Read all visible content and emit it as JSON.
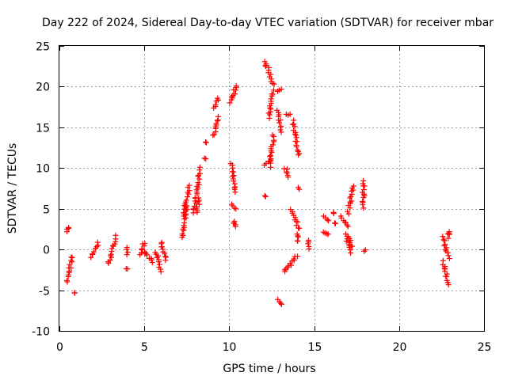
{
  "chart_data": {
    "type": "scatter",
    "title": "Day 222 of 2024, Sidereal Day-to-day VTEC variation (SDTVAR) for receiver mbar",
    "xlabel": "GPS time / hours",
    "ylabel": "SDTVAR / TECUs",
    "xlim": [
      0,
      25
    ],
    "ylim": [
      -10,
      25
    ],
    "xticks": [
      0,
      5,
      10,
      15,
      20,
      25
    ],
    "yticks": [
      -10,
      -5,
      0,
      5,
      10,
      15,
      20,
      25
    ],
    "xtick_labels": [
      "0",
      "5",
      "10",
      "15",
      "20",
      "25"
    ],
    "ytick_labels": [
      "-10",
      "-5",
      "0",
      "5",
      "10",
      "15",
      "20",
      "25"
    ],
    "grid": true,
    "marker": "+",
    "color": "#ff0000",
    "series": [
      {
        "name": "SDTVAR",
        "segments": [
          {
            "x0": 0.45,
            "x1": 0.6,
            "y0": 2.2,
            "y1": 2.8
          },
          {
            "x0": 0.45,
            "x1": 0.75,
            "y0": -4.0,
            "y1": -0.8
          },
          {
            "x0": 0.9,
            "x1": 0.9,
            "y0": -5.4,
            "y1": -5.4
          },
          {
            "x0": 1.9,
            "x1": 2.3,
            "y0": -0.9,
            "y1": 0.8
          },
          {
            "x0": 2.9,
            "x1": 3.3,
            "y0": -1.8,
            "y1": 1.6
          },
          {
            "x0": 4.0,
            "x1": 4.0,
            "y0": 0.2,
            "y1": -0.5
          },
          {
            "x0": 4.0,
            "x1": 4.0,
            "y0": -2.4,
            "y1": -2.4
          },
          {
            "x0": 4.8,
            "x1": 5.0,
            "y0": -0.5,
            "y1": 0.8
          },
          {
            "x0": 5.0,
            "x1": 5.5,
            "y0": -0.2,
            "y1": -1.6
          },
          {
            "x0": 5.7,
            "x1": 6.0,
            "y0": -0.4,
            "y1": -2.6
          },
          {
            "x0": 6.0,
            "x1": 6.3,
            "y0": 0.9,
            "y1": -1.2
          },
          {
            "x0": 7.2,
            "x1": 7.5,
            "y0": 1.5,
            "y1": 5.5
          },
          {
            "x0": 7.3,
            "x1": 7.65,
            "y0": 4.0,
            "y1": 7.8
          },
          {
            "x0": 7.9,
            "x1": 8.3,
            "y0": 4.5,
            "y1": 10.0
          },
          {
            "x0": 8.05,
            "x1": 8.25,
            "y0": 4.6,
            "y1": 6.3
          },
          {
            "x0": 8.6,
            "x1": 8.6,
            "y0": 13.2,
            "y1": 13.2
          },
          {
            "x0": 8.6,
            "x1": 8.6,
            "y0": 11.1,
            "y1": 11.1
          },
          {
            "x0": 9.1,
            "x1": 9.35,
            "y0": 17.5,
            "y1": 18.5
          },
          {
            "x0": 9.1,
            "x1": 9.35,
            "y0": 14.0,
            "y1": 16.2
          },
          {
            "x0": 10.1,
            "x1": 10.4,
            "y0": 18.0,
            "y1": 20.2
          },
          {
            "x0": 10.15,
            "x1": 10.4,
            "y0": 10.5,
            "y1": 7.0
          },
          {
            "x0": 10.2,
            "x1": 10.4,
            "y0": 5.5,
            "y1": 5.0
          },
          {
            "x0": 10.25,
            "x1": 10.35,
            "y0": 3.5,
            "y1": 2.8
          },
          {
            "x0": 12.15,
            "x1": 12.15,
            "y0": 6.6,
            "y1": 6.6
          },
          {
            "x0": 12.1,
            "x1": 12.2,
            "y0": 23.0,
            "y1": 22.5
          },
          {
            "x0": 12.3,
            "x1": 12.6,
            "y0": 22.2,
            "y1": 20.2
          },
          {
            "x0": 12.3,
            "x1": 12.6,
            "y0": 16.2,
            "y1": 19.5
          },
          {
            "x0": 12.1,
            "x1": 12.5,
            "y0": 10.5,
            "y1": 11.0
          },
          {
            "x0": 12.4,
            "x1": 12.6,
            "y0": 10.2,
            "y1": 14.0
          },
          {
            "x0": 12.85,
            "x1": 13.0,
            "y0": 19.5,
            "y1": 19.8
          },
          {
            "x0": 12.85,
            "x1": 13.05,
            "y0": 17.0,
            "y1": 14.5
          },
          {
            "x0": 12.85,
            "x1": 13.05,
            "y0": -6.2,
            "y1": -6.7
          },
          {
            "x0": 13.3,
            "x1": 13.5,
            "y0": 10.0,
            "y1": 8.8
          },
          {
            "x0": 13.4,
            "x1": 13.6,
            "y0": 16.5,
            "y1": 16.5
          },
          {
            "x0": 13.25,
            "x1": 13.6,
            "y0": -2.8,
            "y1": -1.8
          },
          {
            "x0": 13.6,
            "x1": 14.0,
            "y0": -1.7,
            "y1": -0.8
          },
          {
            "x0": 13.65,
            "x1": 14.1,
            "y0": 5.0,
            "y1": 2.5
          },
          {
            "x0": 13.75,
            "x1": 14.1,
            "y0": 15.8,
            "y1": 11.5
          },
          {
            "x0": 14.05,
            "x1": 14.05,
            "y0": 1.8,
            "y1": 1.0
          },
          {
            "x0": 14.1,
            "x1": 14.1,
            "y0": 7.5,
            "y1": 7.5
          },
          {
            "x0": 14.6,
            "x1": 14.7,
            "y0": 1.0,
            "y1": 0.2
          },
          {
            "x0": 15.6,
            "x1": 15.8,
            "y0": 4.0,
            "y1": 3.6
          },
          {
            "x0": 15.6,
            "x1": 15.8,
            "y0": 2.2,
            "y1": 2.0
          },
          {
            "x0": 16.2,
            "x1": 16.2,
            "y0": 4.5,
            "y1": 4.5
          },
          {
            "x0": 16.2,
            "x1": 16.2,
            "y0": 3.2,
            "y1": 3.2
          },
          {
            "x0": 16.6,
            "x1": 16.95,
            "y0": 4.0,
            "y1": 2.8
          },
          {
            "x0": 16.85,
            "x1": 17.15,
            "y0": 1.8,
            "y1": -0.3
          },
          {
            "x0": 17.0,
            "x1": 17.3,
            "y0": 4.5,
            "y1": 7.8
          },
          {
            "x0": 17.05,
            "x1": 17.25,
            "y0": 1.5,
            "y1": 0.3
          },
          {
            "x0": 17.9,
            "x1": 17.9,
            "y0": 8.5,
            "y1": 5.2
          },
          {
            "x0": 17.95,
            "x1": 17.95,
            "y0": -0.2,
            "y1": -0.2
          },
          {
            "x0": 22.6,
            "x1": 22.9,
            "y0": 1.5,
            "y1": -1.0
          },
          {
            "x0": 22.6,
            "x1": 22.9,
            "y0": -1.5,
            "y1": -4.2
          },
          {
            "x0": 22.9,
            "x1": 22.9,
            "y0": 2.3,
            "y1": 1.5
          }
        ]
      }
    ]
  }
}
